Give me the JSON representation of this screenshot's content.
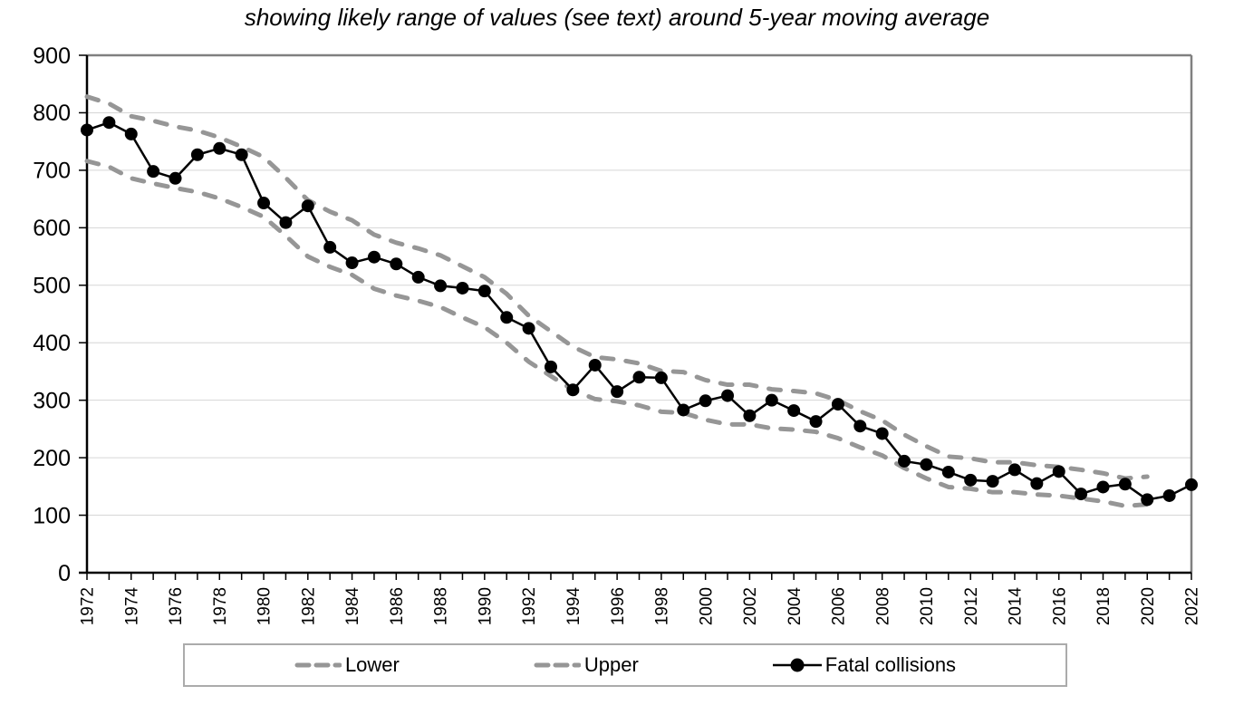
{
  "title": "showing likely range of values (see text) around 5-year moving average",
  "colors": {
    "band": "#969696",
    "series": "#000000",
    "gridline": "#d6d6d6",
    "plot_border": "#808080",
    "axis": "#000000"
  },
  "legend": {
    "items": [
      {
        "label": "Lower"
      },
      {
        "label": "Upper"
      },
      {
        "label": "Fatal collisions"
      }
    ]
  },
  "chart_data": {
    "type": "line",
    "title": "showing likely range of values (see text) around 5-year moving average",
    "xlabel": "",
    "ylabel": "",
    "ylim": [
      0,
      900
    ],
    "y_ticks": [
      0,
      100,
      200,
      300,
      400,
      500,
      600,
      700,
      800,
      900
    ],
    "grid": "horizontal",
    "legend_position": "bottom",
    "x": [
      1972,
      1973,
      1974,
      1975,
      1976,
      1977,
      1978,
      1979,
      1980,
      1981,
      1982,
      1983,
      1984,
      1985,
      1986,
      1987,
      1988,
      1989,
      1990,
      1991,
      1992,
      1993,
      1994,
      1995,
      1996,
      1997,
      1998,
      1999,
      2000,
      2001,
      2002,
      2003,
      2004,
      2005,
      2006,
      2007,
      2008,
      2009,
      2010,
      2011,
      2012,
      2013,
      2014,
      2015,
      2016,
      2017,
      2018,
      2019,
      2020,
      2021,
      2022
    ],
    "x_tick_labels": [
      "1972",
      "1974",
      "1976",
      "1978",
      "1980",
      "1982",
      "1984",
      "1986",
      "1988",
      "1990",
      "1992",
      "1994",
      "1996",
      "1998",
      "2000",
      "2002",
      "2004",
      "2006",
      "2008",
      "2010",
      "2012",
      "2014",
      "2016",
      "2018",
      "2020",
      "2022"
    ],
    "series": [
      {
        "name": "Lower",
        "style": "dashed",
        "color": "#969696",
        "values": [
          716,
          706,
          686,
          677,
          669,
          662,
          651,
          636,
          619,
          586,
          550,
          532,
          518,
          494,
          482,
          473,
          462,
          444,
          427,
          400,
          367,
          342,
          318,
          302,
          298,
          291,
          280,
          278,
          266,
          258,
          258,
          251,
          249,
          245,
          234,
          218,
          204,
          182,
          164,
          149,
          146,
          140,
          140,
          136,
          134,
          129,
          124,
          116,
          119,
          null,
          null
        ]
      },
      {
        "name": "Upper",
        "style": "dashed",
        "color": "#969696",
        "values": [
          828,
          816,
          794,
          786,
          776,
          769,
          757,
          741,
          723,
          687,
          648,
          628,
          613,
          588,
          574,
          564,
          552,
          533,
          514,
          485,
          447,
          420,
          393,
          375,
          371,
          364,
          351,
          349,
          335,
          327,
          327,
          319,
          316,
          312,
          300,
          281,
          265,
          240,
          220,
          202,
          199,
          192,
          192,
          187,
          184,
          179,
          173,
          164,
          167,
          null,
          null
        ]
      },
      {
        "name": "Fatal collisions",
        "style": "solid-markers",
        "color": "#000000",
        "values": [
          770,
          783,
          763,
          698,
          686,
          727,
          738,
          727,
          643,
          609,
          638,
          566,
          539,
          549,
          537,
          514,
          499,
          495,
          490,
          444,
          425,
          358,
          318,
          361,
          315,
          340,
          339,
          283,
          299,
          308,
          273,
          300,
          282,
          263,
          293,
          255,
          242,
          194,
          188,
          175,
          161,
          159,
          179,
          155,
          176,
          137,
          149,
          154,
          127,
          134,
          153
        ]
      }
    ]
  }
}
